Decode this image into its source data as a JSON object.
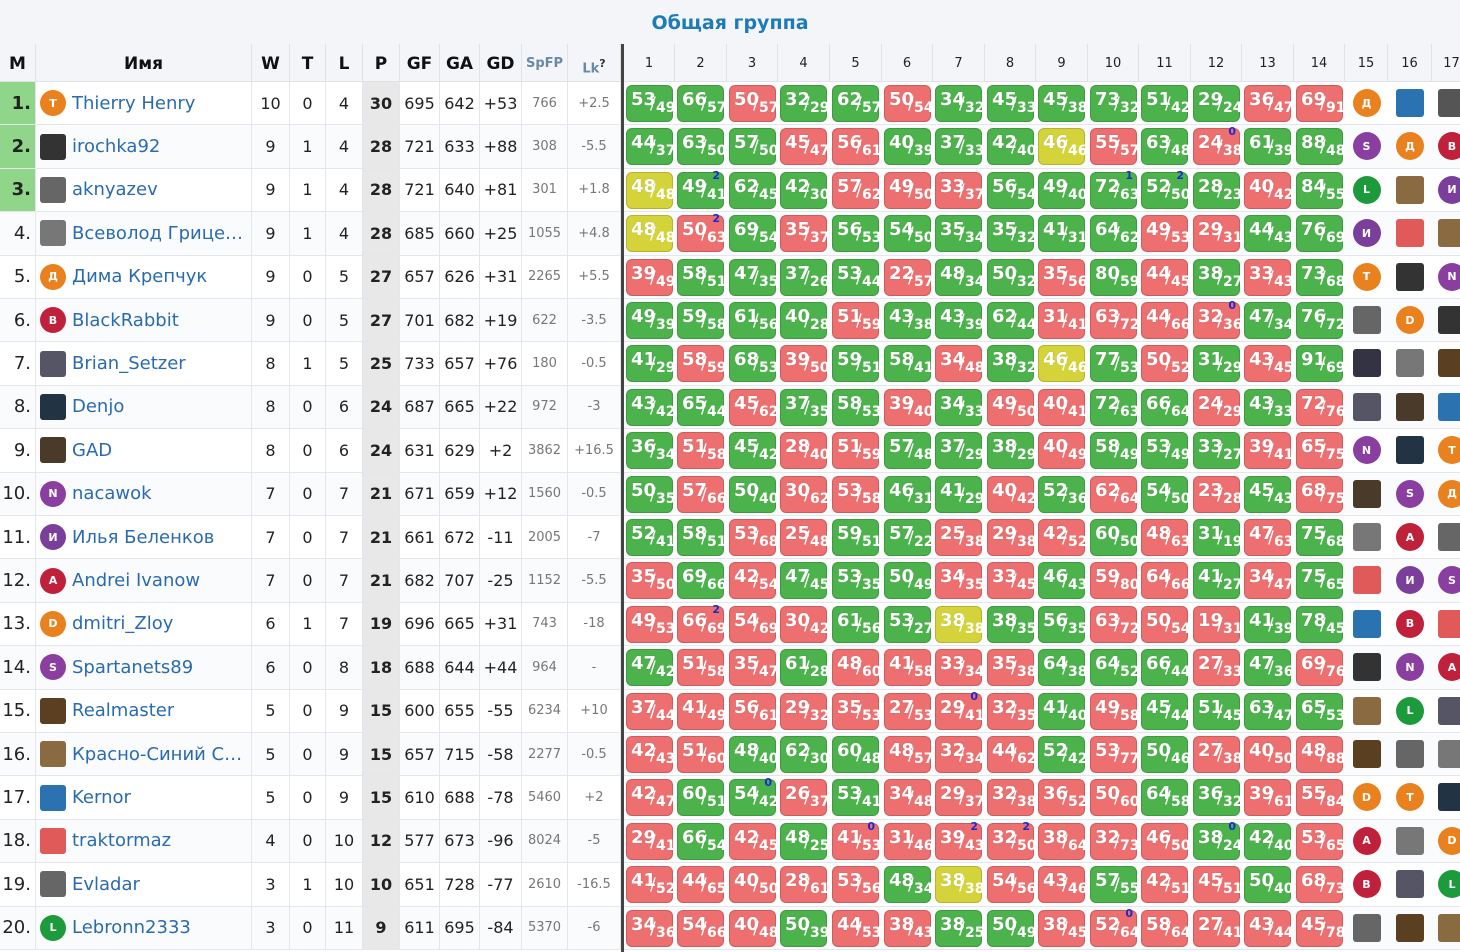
{
  "title": "Общая группа",
  "headers": {
    "m": "М",
    "name": "Имя",
    "w": "W",
    "t": "T",
    "l": "L",
    "p": "P",
    "gf": "GF",
    "ga": "GA",
    "gd": "GD",
    "spfp": "SpFP",
    "lk": "Lk",
    "lk_help": "?",
    "rounds": [
      "1",
      "2",
      "3",
      "4",
      "5",
      "6",
      "7",
      "8",
      "9",
      "10",
      "11",
      "12",
      "13",
      "14",
      "15",
      "16",
      "17"
    ]
  },
  "players": [
    {
      "rank": "1.",
      "name": "Thierry Henry",
      "av": "Т",
      "color": "#e8811e",
      "w": "10",
      "t": "0",
      "l": "4",
      "p": "30",
      "gf": "695",
      "ga": "642",
      "gd": "+53",
      "spfp": "766",
      "lk": "+2.5",
      "games": [
        "53/49",
        "66/57",
        "50/57",
        "32/29",
        "62/57",
        "50/54",
        "34/32",
        "45/33",
        "45/38",
        "73/32",
        "51/42",
        "29/24",
        "36/47",
        "69/91"
      ],
      "marks": [
        "",
        "",
        "",
        "",
        "",
        "",
        "",
        "",
        "",
        "",
        "",
        "",
        "",
        ""
      ],
      "opp": [
        [
          "Д",
          "#e8811e",
          0
        ],
        [
          "",
          "#2a73b0",
          1
        ],
        [
          "",
          "#555",
          1
        ]
      ]
    },
    {
      "rank": "2.",
      "name": "irochka92",
      "av": "",
      "color": "#333",
      "sq": 1,
      "w": "9",
      "t": "1",
      "l": "4",
      "p": "28",
      "gf": "721",
      "ga": "633",
      "gd": "+88",
      "spfp": "308",
      "lk": "-5.5",
      "games": [
        "44/37",
        "63/50",
        "57/50",
        "45/47",
        "56/61",
        "40/39",
        "37/33",
        "42/40",
        "46/46",
        "55/57",
        "63/48",
        "24/38",
        "61/39",
        "88/48"
      ],
      "marks": [
        "",
        "",
        "",
        "",
        "",
        "",
        "",
        "",
        "",
        "",
        "",
        "0",
        "",
        ""
      ],
      "opp": [
        [
          "S",
          "#8a3fa0",
          0
        ],
        [
          "Д",
          "#e8811e",
          0
        ],
        [
          "B",
          "#c0213a",
          0
        ]
      ]
    },
    {
      "rank": "3.",
      "name": "aknyazev",
      "av": "",
      "color": "#666",
      "sq": 1,
      "w": "9",
      "t": "1",
      "l": "4",
      "p": "28",
      "gf": "721",
      "ga": "640",
      "gd": "+81",
      "spfp": "301",
      "lk": "+1.8",
      "games": [
        "48/48",
        "49/41",
        "62/45",
        "42/30",
        "57/62",
        "49/50",
        "33/37",
        "56/54",
        "49/40",
        "72/63",
        "52/50",
        "28/23",
        "40/42",
        "84/55"
      ],
      "marks": [
        "",
        "2",
        "",
        "",
        "",
        "",
        "",
        "",
        "",
        "1",
        "2",
        "",
        "",
        ""
      ],
      "opp": [
        [
          "L",
          "#1c9a3c",
          0
        ],
        [
          "",
          "#8a6a40",
          1
        ],
        [
          "И",
          "#7a3f9a",
          0
        ]
      ]
    },
    {
      "rank": "4.",
      "name": "Всеволод Грице…",
      "av": "",
      "color": "#777",
      "sq": 1,
      "w": "9",
      "t": "1",
      "l": "4",
      "p": "28",
      "gf": "685",
      "ga": "660",
      "gd": "+25",
      "spfp": "1055",
      "lk": "+4.8",
      "games": [
        "48/48",
        "50/63",
        "69/54",
        "35/37",
        "56/53",
        "54/50",
        "35/34",
        "35/32",
        "41/31",
        "64/62",
        "49/53",
        "29/31",
        "44/43",
        "76/69"
      ],
      "marks": [
        "",
        "2",
        "",
        "",
        "",
        "",
        "",
        "",
        "",
        "",
        "",
        "",
        "",
        ""
      ],
      "opp": [
        [
          "И",
          "#7a3f9a",
          0
        ],
        [
          "",
          "#e05a5a",
          1
        ],
        [
          "",
          "#8a6a40",
          1
        ]
      ]
    },
    {
      "rank": "5.",
      "name": "Дима Крепчук",
      "av": "Д",
      "color": "#e8811e",
      "w": "9",
      "t": "0",
      "l": "5",
      "p": "27",
      "gf": "657",
      "ga": "626",
      "gd": "+31",
      "spfp": "2265",
      "lk": "+5.5",
      "games": [
        "39/49",
        "58/51",
        "47/35",
        "37/26",
        "53/44",
        "22/57",
        "48/34",
        "50/32",
        "35/56",
        "80/59",
        "44/45",
        "38/27",
        "33/43",
        "73/68"
      ],
      "marks": [
        "",
        "",
        "",
        "",
        "",
        "",
        "",
        "",
        "",
        "",
        "",
        "",
        "",
        ""
      ],
      "opp": [
        [
          "Т",
          "#e8811e",
          0
        ],
        [
          "",
          "#333",
          1
        ],
        [
          "N",
          "#8a3fa0",
          0
        ]
      ]
    },
    {
      "rank": "6.",
      "name": "BlackRabbit",
      "av": "B",
      "color": "#c0213a",
      "w": "9",
      "t": "0",
      "l": "5",
      "p": "27",
      "gf": "701",
      "ga": "682",
      "gd": "+19",
      "spfp": "622",
      "lk": "-3.5",
      "games": [
        "49/39",
        "59/58",
        "61/56",
        "40/28",
        "51/59",
        "43/38",
        "43/39",
        "62/44",
        "31/41",
        "63/72",
        "44/66",
        "32/36",
        "47/34",
        "76/72"
      ],
      "marks": [
        "",
        "",
        "",
        "",
        "",
        "",
        "",
        "",
        "",
        "",
        "",
        "0",
        "",
        ""
      ],
      "opp": [
        [
          "",
          "#666",
          1
        ],
        [
          "D",
          "#e8811e",
          0
        ],
        [
          "",
          "#333",
          1
        ]
      ]
    },
    {
      "rank": "7.",
      "name": "Brian_Setzer",
      "av": "",
      "color": "#556",
      "sq": 1,
      "w": "8",
      "t": "1",
      "l": "5",
      "p": "25",
      "gf": "733",
      "ga": "657",
      "gd": "+76",
      "spfp": "180",
      "lk": "-0.5",
      "games": [
        "41/29",
        "58/59",
        "68/53",
        "39/50",
        "59/51",
        "58/41",
        "34/48",
        "38/32",
        "46/46",
        "77/53",
        "50/52",
        "31/29",
        "43/45",
        "91/69"
      ],
      "marks": [
        "",
        "",
        "",
        "",
        "",
        "",
        "",
        "",
        "",
        "",
        "",
        "",
        "",
        ""
      ],
      "opp": [
        [
          "",
          "#334",
          1
        ],
        [
          "",
          "#777",
          1
        ],
        [
          "",
          "#5a4020",
          1
        ]
      ]
    },
    {
      "rank": "8.",
      "name": "Denjo",
      "av": "",
      "color": "#234",
      "sq": 1,
      "w": "8",
      "t": "0",
      "l": "6",
      "p": "24",
      "gf": "687",
      "ga": "665",
      "gd": "+22",
      "spfp": "972",
      "lk": "-3",
      "games": [
        "43/42",
        "65/44",
        "45/62",
        "37/35",
        "58/53",
        "39/40",
        "34/33",
        "49/50",
        "40/41",
        "72/63",
        "66/64",
        "24/29",
        "43/33",
        "72/76"
      ],
      "marks": [
        "",
        "",
        "",
        "",
        "",
        "",
        "",
        "",
        "",
        "",
        "",
        "",
        "",
        ""
      ],
      "opp": [
        [
          "",
          "#556",
          1
        ],
        [
          "",
          "#4a3a2a",
          1
        ],
        [
          "",
          "#2a73b0",
          1
        ]
      ]
    },
    {
      "rank": "9.",
      "name": "GAD",
      "av": "",
      "color": "#4a3a2a",
      "sq": 1,
      "w": "8",
      "t": "0",
      "l": "6",
      "p": "24",
      "gf": "631",
      "ga": "629",
      "gd": "+2",
      "spfp": "3862",
      "lk": "+16.5",
      "games": [
        "36/34",
        "51/58",
        "45/42",
        "28/40",
        "51/59",
        "57/48",
        "37/29",
        "38/29",
        "40/49",
        "58/49",
        "53/49",
        "33/27",
        "39/41",
        "65/75"
      ],
      "marks": [
        "",
        "",
        "",
        "",
        "",
        "",
        "",
        "",
        "",
        "",
        "",
        "",
        "",
        ""
      ],
      "opp": [
        [
          "N",
          "#8a3fa0",
          0
        ],
        [
          "",
          "#234",
          1
        ],
        [
          "Т",
          "#e8811e",
          0
        ]
      ]
    },
    {
      "rank": "10.",
      "name": "nacawok",
      "av": "N",
      "color": "#8a3fa0",
      "w": "7",
      "t": "0",
      "l": "7",
      "p": "21",
      "gf": "671",
      "ga": "659",
      "gd": "+12",
      "spfp": "1560",
      "lk": "-0.5",
      "games": [
        "50/35",
        "57/66",
        "50/40",
        "30/62",
        "53/58",
        "46/31",
        "41/29",
        "40/42",
        "52/36",
        "62/64",
        "54/50",
        "23/28",
        "45/43",
        "68/75"
      ],
      "marks": [
        "",
        "",
        "",
        "",
        "",
        "",
        "",
        "",
        "",
        "",
        "",
        "",
        "",
        ""
      ],
      "opp": [
        [
          "",
          "#4a3a2a",
          1
        ],
        [
          "S",
          "#8a3fa0",
          0
        ],
        [
          "Д",
          "#e8811e",
          0
        ]
      ]
    },
    {
      "rank": "11.",
      "name": "Илья Беленков",
      "av": "И",
      "color": "#7a3f9a",
      "w": "7",
      "t": "0",
      "l": "7",
      "p": "21",
      "gf": "661",
      "ga": "672",
      "gd": "-11",
      "spfp": "2005",
      "lk": "-7",
      "games": [
        "52/41",
        "58/51",
        "53/68",
        "25/48",
        "59/51",
        "57/22",
        "25/38",
        "29/38",
        "42/52",
        "60/50",
        "48/63",
        "31/19",
        "47/63",
        "75/68"
      ],
      "marks": [
        "",
        "",
        "",
        "",
        "",
        "",
        "",
        "",
        "",
        "",
        "",
        "",
        "",
        ""
      ],
      "opp": [
        [
          "",
          "#777",
          1
        ],
        [
          "A",
          "#c0213a",
          0
        ],
        [
          "",
          "#666",
          1
        ]
      ]
    },
    {
      "rank": "12.",
      "name": "Andrei Ivanow",
      "av": "A",
      "color": "#c0213a",
      "w": "7",
      "t": "0",
      "l": "7",
      "p": "21",
      "gf": "682",
      "ga": "707",
      "gd": "-25",
      "spfp": "1152",
      "lk": "-5.5",
      "games": [
        "35/50",
        "69/66",
        "42/54",
        "47/45",
        "53/35",
        "50/49",
        "34/35",
        "33/45",
        "46/43",
        "59/80",
        "64/66",
        "41/27",
        "34/47",
        "75/65"
      ],
      "marks": [
        "",
        "",
        "",
        "",
        "",
        "",
        "",
        "",
        "",
        "",
        "",
        "",
        "",
        ""
      ],
      "opp": [
        [
          "",
          "#e05a5a",
          1
        ],
        [
          "И",
          "#7a3f9a",
          0
        ],
        [
          "S",
          "#8a3fa0",
          0
        ]
      ]
    },
    {
      "rank": "13.",
      "name": "dmitri_Zloy",
      "av": "D",
      "color": "#e8811e",
      "w": "6",
      "t": "1",
      "l": "7",
      "p": "19",
      "gf": "696",
      "ga": "665",
      "gd": "+31",
      "spfp": "743",
      "lk": "-18",
      "games": [
        "49/53",
        "66/69",
        "54/69",
        "30/42",
        "61/56",
        "53/27",
        "38/38",
        "38/35",
        "56/35",
        "63/72",
        "50/54",
        "19/31",
        "41/39",
        "78/45"
      ],
      "marks": [
        "",
        "2",
        "",
        "",
        "",
        "",
        "",
        "",
        "",
        "",
        "",
        "",
        "",
        ""
      ],
      "opp": [
        [
          "",
          "#2a73b0",
          1
        ],
        [
          "B",
          "#c0213a",
          0
        ],
        [
          "",
          "#e05a5a",
          1
        ]
      ]
    },
    {
      "rank": "14.",
      "name": "Spartanets89",
      "av": "S",
      "color": "#8a3fa0",
      "w": "6",
      "t": "0",
      "l": "8",
      "p": "18",
      "gf": "688",
      "ga": "644",
      "gd": "+44",
      "spfp": "964",
      "lk": "-",
      "games": [
        "47/42",
        "51/58",
        "35/47",
        "61/28",
        "48/60",
        "41/58",
        "33/34",
        "35/38",
        "64/38",
        "64/52",
        "66/44",
        "27/33",
        "47/36",
        "69/76"
      ],
      "marks": [
        "",
        "",
        "",
        "",
        "",
        "",
        "",
        "",
        "",
        "",
        "",
        "",
        "",
        ""
      ],
      "opp": [
        [
          "",
          "#333",
          1
        ],
        [
          "N",
          "#8a3fa0",
          0
        ],
        [
          "A",
          "#c0213a",
          0
        ]
      ]
    },
    {
      "rank": "15.",
      "name": "Realmaster",
      "av": "",
      "color": "#5a4020",
      "sq": 1,
      "w": "5",
      "t": "0",
      "l": "9",
      "p": "15",
      "gf": "600",
      "ga": "655",
      "gd": "-55",
      "spfp": "6234",
      "lk": "+10",
      "games": [
        "37/44",
        "41/49",
        "56/61",
        "29/32",
        "35/53",
        "27/53",
        "29/41",
        "32/35",
        "41/40",
        "49/58",
        "45/44",
        "51/45",
        "63/47",
        "65/53"
      ],
      "marks": [
        "",
        "",
        "",
        "",
        "",
        "",
        "0",
        "",
        "",
        "",
        "",
        "",
        "",
        ""
      ],
      "opp": [
        [
          "",
          "#8a6a40",
          1
        ],
        [
          "L",
          "#1c9a3c",
          0
        ],
        [
          "",
          "#556",
          1
        ]
      ]
    },
    {
      "rank": "16.",
      "name": "Красно-Синий С…",
      "av": "",
      "color": "#8a6a40",
      "sq": 1,
      "w": "5",
      "t": "0",
      "l": "9",
      "p": "15",
      "gf": "657",
      "ga": "715",
      "gd": "-58",
      "spfp": "2277",
      "lk": "-0.5",
      "games": [
        "42/43",
        "51/60",
        "48/40",
        "62/30",
        "60/48",
        "48/57",
        "32/34",
        "44/62",
        "52/42",
        "53/77",
        "50/46",
        "27/38",
        "40/50",
        "48/88"
      ],
      "marks": [
        "",
        "",
        "",
        "",
        "",
        "",
        "",
        "",
        "",
        "",
        "",
        "",
        "",
        ""
      ],
      "opp": [
        [
          "",
          "#5a4020",
          1
        ],
        [
          "",
          "#666",
          1
        ],
        [
          "",
          "#777",
          1
        ]
      ]
    },
    {
      "rank": "17.",
      "name": "Kernor",
      "av": "",
      "color": "#2a73b0",
      "sq": 1,
      "w": "5",
      "t": "0",
      "l": "9",
      "p": "15",
      "gf": "610",
      "ga": "688",
      "gd": "-78",
      "spfp": "5460",
      "lk": "+2",
      "games": [
        "42/47",
        "60/51",
        "54/42",
        "26/37",
        "53/41",
        "34/48",
        "29/37",
        "32/38",
        "36/52",
        "50/60",
        "64/58",
        "36/32",
        "39/61",
        "55/84"
      ],
      "marks": [
        "",
        "",
        "0",
        "",
        "",
        "",
        "",
        "",
        "",
        "",
        "",
        "",
        "",
        ""
      ],
      "opp": [
        [
          "D",
          "#e8811e",
          0
        ],
        [
          "Т",
          "#e8811e",
          0
        ],
        [
          "",
          "#234",
          1
        ]
      ]
    },
    {
      "rank": "18.",
      "name": "traktormaz",
      "av": "",
      "color": "#e05a5a",
      "sq": 1,
      "w": "4",
      "t": "0",
      "l": "10",
      "p": "12",
      "gf": "577",
      "ga": "673",
      "gd": "-96",
      "spfp": "8024",
      "lk": "-5",
      "games": [
        "29/41",
        "66/54",
        "42/45",
        "48/25",
        "41/53",
        "31/46",
        "39/43",
        "32/50",
        "38/64",
        "32/73",
        "46/50",
        "38/24",
        "42/40",
        "53/65"
      ],
      "marks": [
        "",
        "",
        "",
        "",
        "0",
        "",
        "2",
        "2",
        "",
        "",
        "",
        "0",
        "",
        ""
      ],
      "opp": [
        [
          "A",
          "#c0213a",
          0
        ],
        [
          "",
          "#777",
          1
        ],
        [
          "D",
          "#e8811e",
          0
        ]
      ]
    },
    {
      "rank": "19.",
      "name": "Evladar",
      "av": "",
      "color": "#666",
      "sq": 1,
      "w": "3",
      "t": "1",
      "l": "10",
      "p": "10",
      "gf": "651",
      "ga": "728",
      "gd": "-77",
      "spfp": "2610",
      "lk": "-16.5",
      "games": [
        "41/52",
        "44/65",
        "40/50",
        "28/61",
        "53/56",
        "48/34",
        "38/38",
        "54/56",
        "43/46",
        "57/55",
        "42/51",
        "45/51",
        "50/40",
        "68/73"
      ],
      "marks": [
        "",
        "",
        "",
        "",
        "",
        "",
        "",
        "",
        "",
        "",
        "",
        "",
        "",
        ""
      ],
      "opp": [
        [
          "B",
          "#c0213a",
          0
        ],
        [
          "",
          "#556",
          1
        ],
        [
          "L",
          "#1c9a3c",
          0
        ]
      ]
    },
    {
      "rank": "20.",
      "name": "Lebronn2333",
      "av": "L",
      "color": "#1c9a3c",
      "w": "3",
      "t": "0",
      "l": "11",
      "p": "9",
      "gf": "611",
      "ga": "695",
      "gd": "-84",
      "spfp": "5370",
      "lk": "-6",
      "games": [
        "34/36",
        "54/66",
        "40/48",
        "50/39",
        "44/53",
        "38/43",
        "38/25",
        "50/49",
        "38/45",
        "52/64",
        "58/64",
        "27/41",
        "43/44",
        "45/78"
      ],
      "marks": [
        "",
        "",
        "",
        "",
        "",
        "",
        "",
        "",
        "",
        "0",
        "",
        "",
        "",
        ""
      ],
      "opp": [
        [
          "",
          "#666",
          1
        ],
        [
          "",
          "#5a4020",
          1
        ],
        [
          "",
          "#8a6a40",
          1
        ]
      ]
    }
  ]
}
